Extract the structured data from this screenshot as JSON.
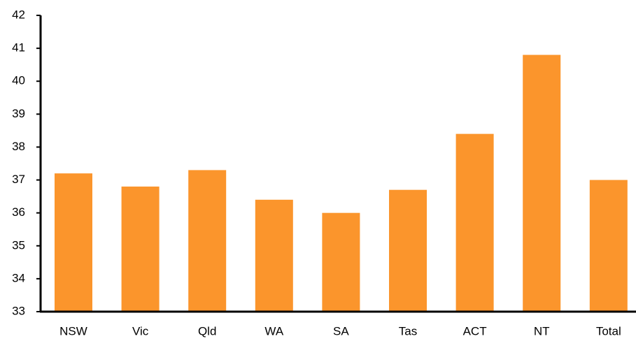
{
  "chart_data": {
    "type": "bar",
    "categories": [
      "NSW",
      "Vic",
      "Qld",
      "WA",
      "SA",
      "Tas",
      "ACT",
      "NT",
      "Total"
    ],
    "values": [
      37.2,
      36.8,
      37.3,
      36.4,
      36.0,
      36.7,
      38.4,
      40.8,
      37.0
    ],
    "color": "#fb952c",
    "ylim": [
      33,
      42
    ],
    "yticks": [
      33,
      34,
      35,
      36,
      37,
      38,
      39,
      40,
      41,
      42
    ],
    "grid": false
  }
}
